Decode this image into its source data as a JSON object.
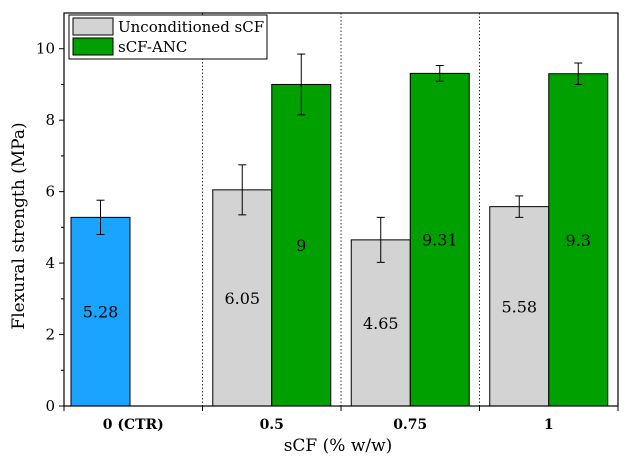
{
  "chart_data": {
    "type": "bar",
    "xlabel": "sCF (% w/w)",
    "ylabel": "Flexural strength (MPa)",
    "ylim": [
      0,
      11
    ],
    "yticks": [
      0,
      2,
      4,
      6,
      8,
      10
    ],
    "legend_position": "top-left",
    "grid": false,
    "categories": [
      "0 (CTR)",
      "0.5",
      "0.75",
      "1"
    ],
    "series": [
      {
        "name": "Unconditioned sCF",
        "color": "#d3d3d3",
        "values": [
          5.28,
          6.05,
          4.65,
          5.58
        ],
        "value_labels": [
          "5.28",
          "6.05",
          "4.65",
          "5.58"
        ],
        "errors": [
          0.48,
          0.7,
          0.63,
          0.3
        ]
      },
      {
        "name": "sCF-ANC",
        "color": "#00a000",
        "values": [
          null,
          9,
          9.31,
          9.3
        ],
        "value_labels": [
          null,
          "9",
          "9.31",
          "9.3"
        ],
        "errors": [
          null,
          0.85,
          0.22,
          0.3
        ]
      }
    ],
    "control_color": "#1aa3ff"
  }
}
